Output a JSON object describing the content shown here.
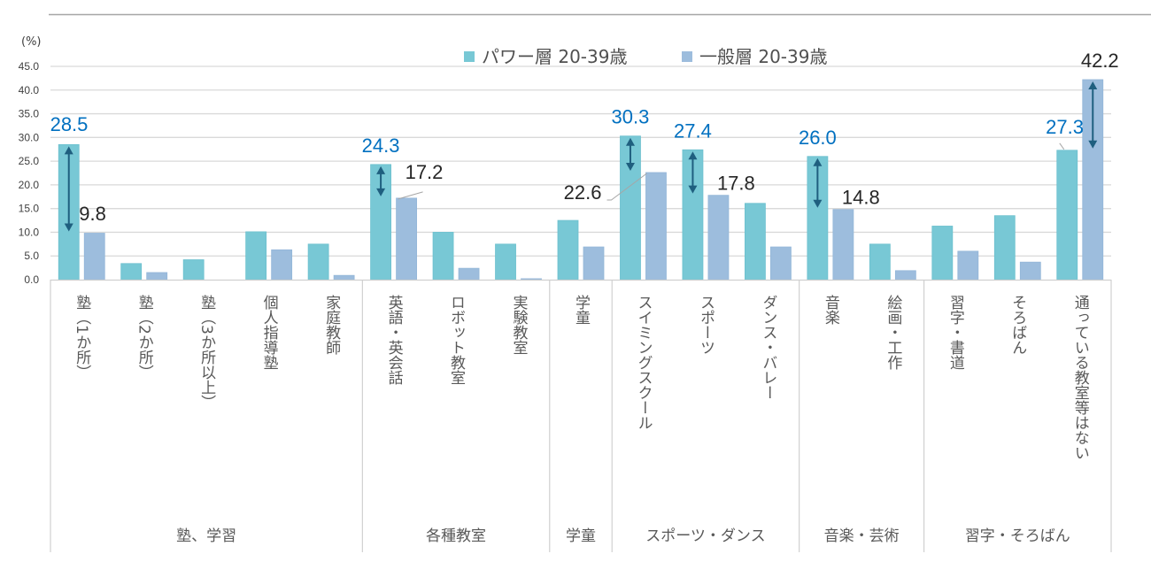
{
  "chart_data": {
    "type": "bar",
    "title": "",
    "xlabel": "",
    "ylabel": "(%)",
    "ylim": [
      0,
      45
    ],
    "yticks": [
      "0.0",
      "5.0",
      "10.0",
      "15.0",
      "20.0",
      "25.0",
      "30.0",
      "35.0",
      "40.0",
      "45.0"
    ],
    "grid": true,
    "legend_position": "top-center",
    "categories": [
      "塾（1か所）",
      "塾（2か所）",
      "塾（3か所以上）",
      "個人指導塾",
      "家庭教師",
      "英語・英会話",
      "ロボット教室",
      "実験教室",
      "学童",
      "スイミングスクール",
      "スポーツ",
      "ダンス・バレー",
      "音楽",
      "絵画・工作",
      "習字・書道",
      "そろばん",
      "通っている教室等はない"
    ],
    "groups": [
      {
        "label": "塾、学習",
        "start": 0,
        "count": 5
      },
      {
        "label": "各種教室",
        "start": 5,
        "count": 3
      },
      {
        "label": "学童",
        "start": 8,
        "count": 1
      },
      {
        "label": "スポーツ・ダンス",
        "start": 9,
        "count": 3
      },
      {
        "label": "音楽・芸術",
        "start": 12,
        "count": 2
      },
      {
        "label": "習字・そろばん",
        "start": 14,
        "count": 3
      }
    ],
    "series": [
      {
        "name": "パワー層 20-39歳",
        "color": "#78c8d5",
        "values": [
          28.5,
          3.4,
          4.2,
          10.1,
          7.5,
          24.3,
          10.0,
          7.5,
          12.5,
          30.3,
          27.4,
          16.1,
          26.0,
          7.5,
          11.3,
          13.5,
          27.3
        ]
      },
      {
        "name": "一般層 20-39歳",
        "color": "#9dbddd",
        "values": [
          9.8,
          1.5,
          0.0,
          6.3,
          0.9,
          17.2,
          2.4,
          0.2,
          6.9,
          22.6,
          17.8,
          6.9,
          14.8,
          1.9,
          6.0,
          3.7,
          42.2
        ]
      }
    ],
    "data_labels": [
      {
        "category": 0,
        "series": 0,
        "text": "28.5",
        "color": "#0070c0"
      },
      {
        "category": 0,
        "series": 1,
        "text": "9.8",
        "color": "#262626"
      },
      {
        "category": 5,
        "series": 0,
        "text": "24.3",
        "color": "#0070c0"
      },
      {
        "category": 5,
        "series": 1,
        "text": "17.2",
        "color": "#262626"
      },
      {
        "category": 9,
        "series": 0,
        "text": "30.3",
        "color": "#0070c0"
      },
      {
        "category": 9,
        "series": 1,
        "text": "22.6",
        "color": "#262626"
      },
      {
        "category": 10,
        "series": 0,
        "text": "27.4",
        "color": "#0070c0"
      },
      {
        "category": 10,
        "series": 1,
        "text": "17.8",
        "color": "#262626"
      },
      {
        "category": 12,
        "series": 0,
        "text": "26.0",
        "color": "#0070c0"
      },
      {
        "category": 12,
        "series": 1,
        "text": "14.8",
        "color": "#262626"
      },
      {
        "category": 16,
        "series": 0,
        "text": "27.3",
        "color": "#0070c0"
      },
      {
        "category": 16,
        "series": 1,
        "text": "42.2",
        "color": "#262626"
      }
    ],
    "difference_arrows": [
      {
        "category": 0,
        "bar_series": 0,
        "from": 28.5,
        "to": 9.8
      },
      {
        "category": 5,
        "bar_series": 0,
        "from": 24.3,
        "to": 17.2
      },
      {
        "category": 9,
        "bar_series": 0,
        "from": 30.3,
        "to": 22.6
      },
      {
        "category": 10,
        "bar_series": 0,
        "from": 27.4,
        "to": 17.8
      },
      {
        "category": 12,
        "bar_series": 0,
        "from": 26.0,
        "to": 14.8
      },
      {
        "category": 16,
        "bar_series": 1,
        "from": 42.2,
        "to": 27.3
      }
    ],
    "arrow_color": "#1f5f7f"
  }
}
